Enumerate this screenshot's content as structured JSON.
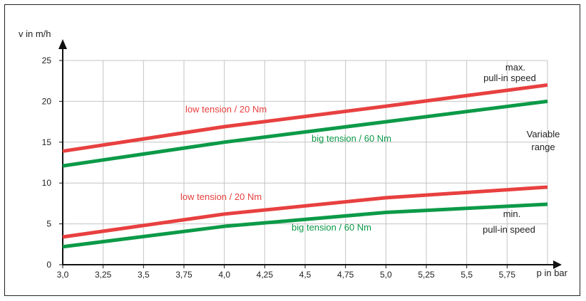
{
  "chart_data": {
    "type": "line",
    "xlabel": "p in bar",
    "ylabel": "v in m/h",
    "xlim": [
      3.0,
      6.0
    ],
    "ylim": [
      0,
      25
    ],
    "x_ticks": [
      "3,0",
      "3,25",
      "3,5",
      "3,75",
      "4,0",
      "4,25",
      "4,5",
      "4,75",
      "5,0",
      "5,25",
      "5,5",
      "5,75"
    ],
    "x_tick_values": [
      3.0,
      3.25,
      3.5,
      3.75,
      4.0,
      4.25,
      4.5,
      4.75,
      5.0,
      5.25,
      5.5,
      5.75
    ],
    "y_ticks": [
      "0",
      "5",
      "10",
      "15",
      "20",
      "25"
    ],
    "y_tick_values": [
      0,
      5,
      10,
      15,
      20,
      25
    ],
    "grid": true,
    "colors": {
      "low": "#e84040",
      "big": "#0c9a48"
    },
    "series": [
      {
        "name": "low tension / 20 Nm",
        "color": "#e84040",
        "x": [
          3.0,
          4.0,
          5.0,
          6.0
        ],
        "values": [
          13.9,
          16.9,
          19.4,
          22.0
        ]
      },
      {
        "name": "big tension / 60 Nm",
        "color": "#0c9a48",
        "x": [
          3.0,
          4.0,
          5.0,
          6.0
        ],
        "values": [
          12.1,
          15.0,
          17.5,
          20.0
        ]
      },
      {
        "name": "low tension / 20 Nm",
        "color": "#e84040",
        "x": [
          3.0,
          4.0,
          5.0,
          6.0
        ],
        "values": [
          3.4,
          6.2,
          8.2,
          9.5
        ]
      },
      {
        "name": "big tension / 60 Nm",
        "color": "#0c9a48",
        "x": [
          3.0,
          4.0,
          5.0,
          6.0
        ],
        "values": [
          2.2,
          4.7,
          6.4,
          7.4
        ]
      }
    ],
    "annotations": [
      {
        "line1": "max.",
        "line2": "pull-in speed"
      },
      {
        "line1": "Variable",
        "line2": "range"
      },
      {
        "line1": "min.",
        "line2": "pull-in speed"
      }
    ]
  }
}
